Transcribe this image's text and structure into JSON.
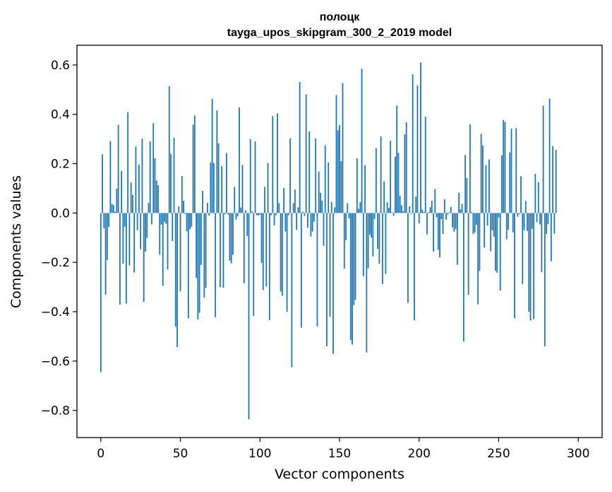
{
  "chart_data": {
    "type": "bar",
    "title": "полоцк",
    "subtitle": "tayga_upos_skipgram_300_2_2019 model",
    "xlabel": "Vector components",
    "ylabel": "Components values",
    "xlim": [
      -15,
      315
    ],
    "ylim": [
      -0.91,
      0.68
    ],
    "xticks": [
      0,
      50,
      100,
      150,
      200,
      250,
      300
    ],
    "xtick_labels": [
      "0",
      "50",
      "100",
      "150",
      "200",
      "250",
      "300"
    ],
    "yticks": [
      -0.8,
      -0.6,
      -0.4,
      -0.2,
      0.0,
      0.2,
      0.4,
      0.6
    ],
    "ytick_labels": [
      "−0.8",
      "−0.6",
      "−0.4",
      "−0.2",
      "0.0",
      "0.2",
      "0.4",
      "0.6"
    ],
    "bar_color": "#1f77b4",
    "grid": false,
    "values": [
      -0.645,
      0.238,
      -0.062,
      -0.331,
      -0.19,
      -0.056,
      0.292,
      0.037,
      0.032,
      0.005,
      0.099,
      0.358,
      -0.371,
      0.17,
      -0.205,
      -0.055,
      -0.367,
      0.408,
      -0.212,
      0.124,
      0.073,
      -0.241,
      0.27,
      -0.069,
      0.196,
      -0.147,
      0.302,
      -0.36,
      -0.156,
      -0.101,
      0.041,
      0.291,
      -0.046,
      0.364,
      0.222,
      0.132,
      0.113,
      -0.169,
      -0.047,
      -0.295,
      -0.035,
      -0.043,
      -0.229,
      0.514,
      0.24,
      -0.113,
      0.305,
      -0.46,
      -0.543,
      0.027,
      -0.318,
      0.15,
      0.05,
      -0.004,
      -0.074,
      -0.427,
      -0.066,
      -0.056,
      0.358,
      0.395,
      -0.263,
      -0.431,
      -0.404,
      -0.21,
      0.09,
      -0.343,
      -0.303,
      0.041,
      -0.01,
      0.205,
      0.463,
      0.202,
      -0.422,
      0.416,
      0.282,
      -0.3,
      0.19,
      -0.303,
      -0.005,
      0.243,
      -0.006,
      -0.193,
      -0.204,
      -0.169,
      0.106,
      -0.026,
      -0.013,
      0.428,
      0.022,
      0.195,
      -0.285,
      0.011,
      -0.093,
      -0.836,
      0.299,
      0.006,
      -0.418,
      0.29,
      -0.009,
      -0.01,
      -0.006,
      -0.202,
      -0.312,
      0.106,
      -0.298,
      0.203,
      -0.434,
      -0.009,
      0.393,
      -0.05,
      -0.009,
      0.404,
      0.04,
      -0.318,
      -0.336,
      0.101,
      -0.075,
      -0.4,
      -0.009,
      0.303,
      -0.625,
      0.04,
      0.095,
      -0.068,
      0.023,
      0.531,
      -0.465,
      0.005,
      -0.012,
      0.481,
      -0.059,
      0.331,
      -0.095,
      -0.075,
      -0.035,
      0.302,
      -0.46,
      0.168,
      0.082,
      0.05,
      -0.133,
      0.275,
      -0.54,
      0.205,
      -0.42,
      0.045,
      -0.57,
      0.023,
      0.478,
      0.335,
      0.357,
      0.21,
      0.527,
      -0.225,
      -0.11,
      0.04,
      -0.022,
      -0.515,
      -0.533,
      -0.373,
      -0.352,
      0.222,
      0.017,
      0.044,
      0.585,
      -0.256,
      0.194,
      -0.565,
      -0.224,
      -0.087,
      -0.1,
      -0.176,
      -0.024,
      0.263,
      -0.145,
      -0.206,
      0.31,
      -0.287,
      0.128,
      -0.247,
      0.043,
      0.021,
      0.293,
      0.003,
      -0.011,
      0.228,
      0.435,
      0.244,
      0.07,
      0.032,
      0.007,
      0.319,
      0.368,
      -0.364,
      0.027,
      -0.003,
      0.562,
      -0.435,
      0.066,
      0.518,
      -0.042,
      0.61,
      0.014,
      0.004,
      0.391,
      -0.087,
      0.003,
      0.024,
      0.05,
      -0.156,
      0.097,
      -0.017,
      -0.149,
      -0.18,
      -0.025,
      -0.085,
      0.056,
      -0.027,
      -0.005,
      0.003,
      0.025,
      -0.058,
      -0.075,
      -0.065,
      -0.21,
      0.082,
      0.015,
      0.038,
      -0.521,
      0.235,
      0.142,
      -0.331,
      0.36,
      0.004,
      -0.085,
      -0.079,
      -0.048,
      -0.37,
      -0.235,
      0.321,
      0.274,
      -0.14,
      0.194,
      -0.051,
      0.217,
      -0.155,
      -0.07,
      -0.096,
      -0.234,
      -0.242,
      -0.018,
      -0.314,
      0.233,
      0.377,
      0.369,
      -0.106,
      -0.068,
      0.246,
      0.342,
      -0.078,
      -0.427,
      0.344,
      -0.015,
      -0.004,
      0.149,
      -0.288,
      -0.07,
      0.049,
      -0.073,
      -0.4,
      -0.435,
      -0.064,
      -0.43,
      0.159,
      -0.037,
      0.125,
      -0.046,
      -0.24,
      0.435,
      -0.54,
      -0.085,
      -0.045,
      0.464,
      -0.195,
      0.271,
      -0.084,
      0.256
    ]
  }
}
